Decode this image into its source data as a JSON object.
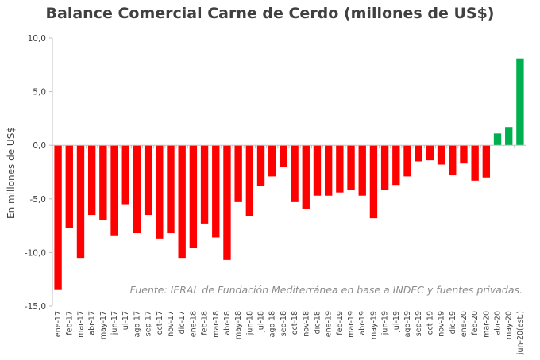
{
  "chart_data": {
    "type": "bar",
    "title": "Balance Comercial Carne de Cerdo (millones de US$)",
    "xlabel": "",
    "ylabel": "En millones de US$",
    "ylim": [
      -15,
      10
    ],
    "yticks": [
      "10,0",
      "5,0",
      "0,0",
      "-5,0",
      "-10,0",
      "-15,0"
    ],
    "ytick_values": [
      10,
      5,
      0,
      -5,
      -10,
      -15
    ],
    "grid": false,
    "source": "Fuente: IERAL de Fundación Mediterránea en base a INDEC y fuentes privadas.",
    "colors": {
      "negative": "#ff0000",
      "positive": "#00b050",
      "axis": "#bfbfbf",
      "text": "#404040"
    },
    "categories": [
      "ene-17",
      "feb-17",
      "mar-17",
      "abr-17",
      "may-17",
      "jun-17",
      "jul-17",
      "ago-17",
      "sep-17",
      "oct-17",
      "nov-17",
      "dic-17",
      "ene-18",
      "feb-18",
      "mar-18",
      "abr-18",
      "may-18",
      "jun-18",
      "jul-18",
      "ago-18",
      "sep-18",
      "oct-18",
      "nov-18",
      "dic-18",
      "ene-19",
      "feb-19",
      "mar-19",
      "abr-19",
      "may-19",
      "jun-19",
      "jul-19",
      "ago-19",
      "sep-19",
      "oct-19",
      "nov-19",
      "dic-19",
      "ene-20",
      "feb-20",
      "mar-20",
      "abr-20",
      "may-20",
      "jun-20(est.)"
    ],
    "values": [
      -13.5,
      -7.7,
      -10.5,
      -6.5,
      -7.0,
      -8.4,
      -5.5,
      -8.2,
      -6.5,
      -8.7,
      -8.2,
      -10.5,
      -9.6,
      -7.3,
      -8.6,
      -10.7,
      -5.3,
      -6.6,
      -3.8,
      -2.9,
      -2.0,
      -5.3,
      -5.9,
      -4.7,
      -4.7,
      -4.4,
      -4.2,
      -4.7,
      -6.8,
      -4.2,
      -3.7,
      -2.9,
      -1.5,
      -1.4,
      -1.8,
      -2.8,
      -1.7,
      -3.3,
      -3.0,
      1.1,
      1.7,
      8.1
    ]
  }
}
